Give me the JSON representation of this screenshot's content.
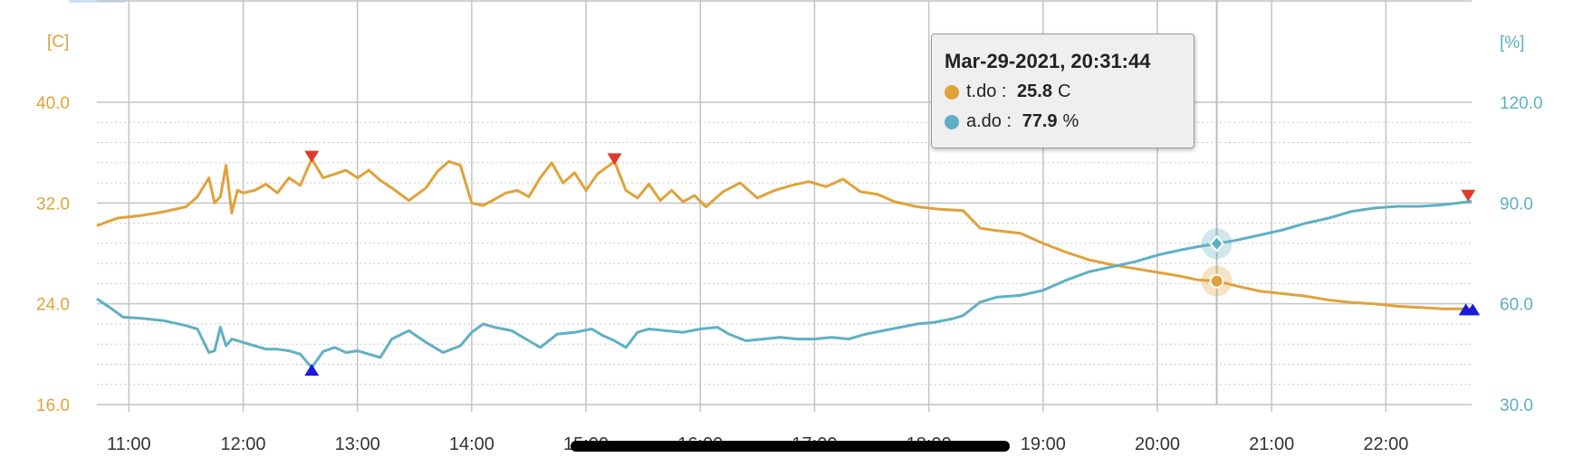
{
  "chart_data": {
    "type": "line",
    "left_axis": {
      "label": "[C]",
      "ticks": [
        "40.0",
        "32.0",
        "24.0",
        "16.0"
      ],
      "range": [
        16,
        40
      ]
    },
    "right_axis": {
      "label": "[%]",
      "ticks": [
        "120.0",
        "90.0",
        "60.0",
        "30.0"
      ],
      "range": [
        30,
        120
      ]
    },
    "x_ticks": [
      "11:00",
      "12:00",
      "13:00",
      "14:00",
      "15:00",
      "16:00",
      "17:00",
      "18:00",
      "19:00",
      "20:00",
      "21:00",
      "22:00"
    ],
    "x_range_hours": [
      10.72,
      22.75
    ],
    "grid": true,
    "series": [
      {
        "name": "t.do",
        "unit": "C",
        "color": "#e0a23a",
        "axis": "left",
        "points": [
          [
            10.72,
            30.2
          ],
          [
            10.9,
            30.8
          ],
          [
            11.1,
            31.0
          ],
          [
            11.3,
            31.3
          ],
          [
            11.5,
            31.7
          ],
          [
            11.6,
            32.5
          ],
          [
            11.7,
            34.0
          ],
          [
            11.75,
            32.0
          ],
          [
            11.8,
            32.5
          ],
          [
            11.85,
            35.0
          ],
          [
            11.9,
            31.2
          ],
          [
            11.95,
            33.0
          ],
          [
            12.0,
            32.8
          ],
          [
            12.1,
            33.0
          ],
          [
            12.2,
            33.5
          ],
          [
            12.3,
            32.8
          ],
          [
            12.4,
            34.0
          ],
          [
            12.5,
            33.4
          ],
          [
            12.6,
            35.5
          ],
          [
            12.7,
            34.0
          ],
          [
            12.8,
            34.3
          ],
          [
            12.9,
            34.6
          ],
          [
            13.0,
            34.0
          ],
          [
            13.1,
            34.6
          ],
          [
            13.2,
            33.8
          ],
          [
            13.3,
            33.2
          ],
          [
            13.45,
            32.2
          ],
          [
            13.6,
            33.2
          ],
          [
            13.7,
            34.5
          ],
          [
            13.8,
            35.3
          ],
          [
            13.9,
            35.0
          ],
          [
            14.0,
            32.0
          ],
          [
            14.1,
            31.8
          ],
          [
            14.2,
            32.3
          ],
          [
            14.3,
            32.8
          ],
          [
            14.4,
            33.0
          ],
          [
            14.5,
            32.5
          ],
          [
            14.6,
            34.0
          ],
          [
            14.7,
            35.2
          ],
          [
            14.8,
            33.6
          ],
          [
            14.9,
            34.4
          ],
          [
            15.0,
            33.0
          ],
          [
            15.1,
            34.3
          ],
          [
            15.25,
            35.3
          ],
          [
            15.35,
            33.0
          ],
          [
            15.45,
            32.4
          ],
          [
            15.55,
            33.5
          ],
          [
            15.65,
            32.2
          ],
          [
            15.75,
            33.0
          ],
          [
            15.85,
            32.1
          ],
          [
            15.95,
            32.6
          ],
          [
            16.05,
            31.7
          ],
          [
            16.2,
            32.9
          ],
          [
            16.35,
            33.6
          ],
          [
            16.5,
            32.4
          ],
          [
            16.65,
            33.0
          ],
          [
            16.8,
            33.4
          ],
          [
            16.95,
            33.7
          ],
          [
            17.1,
            33.3
          ],
          [
            17.25,
            33.9
          ],
          [
            17.4,
            32.9
          ],
          [
            17.55,
            32.7
          ],
          [
            17.7,
            32.1
          ],
          [
            17.9,
            31.7
          ],
          [
            18.1,
            31.5
          ],
          [
            18.3,
            31.4
          ],
          [
            18.45,
            30.0
          ],
          [
            18.6,
            29.8
          ],
          [
            18.8,
            29.6
          ],
          [
            19.0,
            28.8
          ],
          [
            19.2,
            28.1
          ],
          [
            19.4,
            27.5
          ],
          [
            19.6,
            27.1
          ],
          [
            19.8,
            26.8
          ],
          [
            20.0,
            26.5
          ],
          [
            20.2,
            26.2
          ],
          [
            20.35,
            25.9
          ],
          [
            20.52,
            25.8
          ],
          [
            20.7,
            25.4
          ],
          [
            20.9,
            25.0
          ],
          [
            21.1,
            24.8
          ],
          [
            21.3,
            24.6
          ],
          [
            21.5,
            24.3
          ],
          [
            21.7,
            24.1
          ],
          [
            21.9,
            24.0
          ],
          [
            22.1,
            23.8
          ],
          [
            22.3,
            23.7
          ],
          [
            22.5,
            23.6
          ],
          [
            22.75,
            23.6
          ]
        ]
      },
      {
        "name": "a.do",
        "unit": "%",
        "color": "#5fb0c4",
        "axis": "right",
        "points": [
          [
            10.72,
            61.5
          ],
          [
            10.85,
            58.5
          ],
          [
            10.95,
            56.0
          ],
          [
            11.1,
            55.7
          ],
          [
            11.3,
            55.0
          ],
          [
            11.5,
            53.5
          ],
          [
            11.6,
            52.5
          ],
          [
            11.7,
            45.5
          ],
          [
            11.75,
            46.0
          ],
          [
            11.8,
            53.0
          ],
          [
            11.85,
            47.5
          ],
          [
            11.9,
            49.5
          ],
          [
            12.0,
            48.5
          ],
          [
            12.1,
            47.5
          ],
          [
            12.2,
            46.5
          ],
          [
            12.3,
            46.5
          ],
          [
            12.4,
            46.0
          ],
          [
            12.5,
            45.0
          ],
          [
            12.6,
            41.0
          ],
          [
            12.7,
            45.8
          ],
          [
            12.8,
            47.0
          ],
          [
            12.9,
            45.5
          ],
          [
            13.0,
            46.0
          ],
          [
            13.1,
            45.0
          ],
          [
            13.2,
            44.0
          ],
          [
            13.3,
            49.5
          ],
          [
            13.45,
            52.0
          ],
          [
            13.6,
            48.5
          ],
          [
            13.75,
            45.5
          ],
          [
            13.9,
            47.5
          ],
          [
            14.0,
            51.5
          ],
          [
            14.1,
            54.0
          ],
          [
            14.2,
            53.0
          ],
          [
            14.35,
            52.0
          ],
          [
            14.5,
            49.0
          ],
          [
            14.6,
            47.0
          ],
          [
            14.75,
            51.0
          ],
          [
            14.9,
            51.5
          ],
          [
            15.05,
            52.5
          ],
          [
            15.15,
            50.5
          ],
          [
            15.25,
            49.0
          ],
          [
            15.35,
            47.0
          ],
          [
            15.45,
            51.5
          ],
          [
            15.55,
            52.5
          ],
          [
            15.7,
            52.0
          ],
          [
            15.85,
            51.5
          ],
          [
            16.0,
            52.5
          ],
          [
            16.15,
            53.0
          ],
          [
            16.25,
            51.0
          ],
          [
            16.4,
            49.0
          ],
          [
            16.55,
            49.5
          ],
          [
            16.7,
            50.0
          ],
          [
            16.85,
            49.5
          ],
          [
            17.0,
            49.5
          ],
          [
            17.15,
            50.0
          ],
          [
            17.3,
            49.5
          ],
          [
            17.45,
            51.0
          ],
          [
            17.6,
            52.0
          ],
          [
            17.75,
            53.0
          ],
          [
            17.9,
            54.0
          ],
          [
            18.05,
            54.5
          ],
          [
            18.2,
            55.5
          ],
          [
            18.3,
            56.5
          ],
          [
            18.45,
            60.5
          ],
          [
            18.6,
            62.0
          ],
          [
            18.8,
            62.5
          ],
          [
            19.0,
            64.0
          ],
          [
            19.2,
            67.0
          ],
          [
            19.4,
            69.5
          ],
          [
            19.6,
            71.0
          ],
          [
            19.8,
            72.5
          ],
          [
            20.0,
            74.5
          ],
          [
            20.2,
            76.0
          ],
          [
            20.35,
            77.0
          ],
          [
            20.52,
            77.9
          ],
          [
            20.7,
            79.0
          ],
          [
            20.9,
            80.5
          ],
          [
            21.1,
            82.0
          ],
          [
            21.3,
            84.0
          ],
          [
            21.5,
            85.5
          ],
          [
            21.7,
            87.5
          ],
          [
            21.9,
            88.5
          ],
          [
            22.1,
            89.0
          ],
          [
            22.3,
            89.0
          ],
          [
            22.5,
            89.5
          ],
          [
            22.75,
            90.5
          ]
        ]
      }
    ],
    "markers": {
      "max": [
        [
          12.6,
          35.5,
          "t"
        ],
        [
          15.25,
          35.3,
          "t"
        ],
        [
          22.72,
          32.4,
          "t"
        ]
      ],
      "min": [
        [
          12.6,
          41.0,
          "a"
        ],
        [
          22.7,
          59.0,
          "a"
        ],
        [
          22.76,
          59.0,
          "a"
        ]
      ]
    },
    "tooltip": {
      "title": "Mar-29-2021, 20:31:44",
      "hover_x": 20.52,
      "rows": [
        {
          "name": "t.do",
          "sep": " : ",
          "value": "25.8",
          "unit": "C"
        },
        {
          "name": "a.do",
          "sep": " : ",
          "value": "77.9",
          "unit": "%"
        }
      ]
    }
  }
}
